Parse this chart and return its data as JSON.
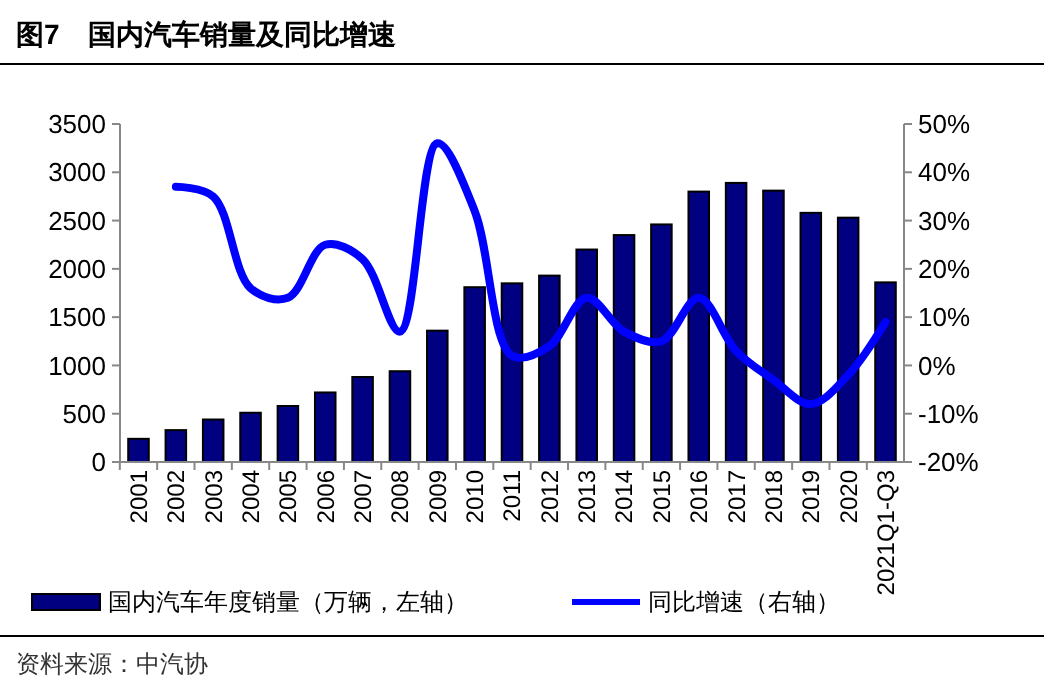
{
  "chart_data": {
    "type": "bar",
    "title": "图7　国内汽车销量及同比增速",
    "categories": [
      "2001",
      "2002",
      "2003",
      "2004",
      "2005",
      "2006",
      "2007",
      "2008",
      "2009",
      "2010",
      "2011",
      "2012",
      "2013",
      "2014",
      "2015",
      "2016",
      "2017",
      "2018",
      "2019",
      "2020",
      "2021Q1-Q3"
    ],
    "series": [
      {
        "name": "国内汽车年度销量（万辆，左轴）",
        "color": "#000080",
        "values": [
          240,
          330,
          440,
          510,
          580,
          720,
          880,
          940,
          1360,
          1810,
          1850,
          1930,
          2200,
          2350,
          2460,
          2800,
          2890,
          2810,
          2580,
          2530,
          1860
        ]
      },
      {
        "name": "同比增速（右轴）",
        "type": "line",
        "axis": "y2",
        "color": "#0000ff",
        "values": [
          null,
          37,
          35,
          16,
          14,
          25,
          22,
          7,
          46,
          32,
          2,
          4,
          14,
          7,
          5,
          14,
          3,
          -3,
          -8,
          -2,
          9
        ]
      }
    ],
    "ylim": [
      0,
      3500
    ],
    "yticks": [
      0,
      500,
      1000,
      1500,
      2000,
      2500,
      3000,
      3500
    ],
    "y2lim": [
      -20,
      50
    ],
    "y2ticks": [
      {
        "value": -20,
        "label": "-20%"
      },
      {
        "value": -10,
        "label": "-10%"
      },
      {
        "value": 0,
        "label": "0%"
      },
      {
        "value": 10,
        "label": "10%"
      },
      {
        "value": 20,
        "label": "20%"
      },
      {
        "value": 30,
        "label": "30%"
      },
      {
        "value": 40,
        "label": "40%"
      },
      {
        "value": 50,
        "label": "50%"
      }
    ],
    "grid": false,
    "legend": "bottom",
    "line_style": "solid",
    "marker": "none",
    "annotations": [
      "资料来源：中汽协"
    ]
  }
}
